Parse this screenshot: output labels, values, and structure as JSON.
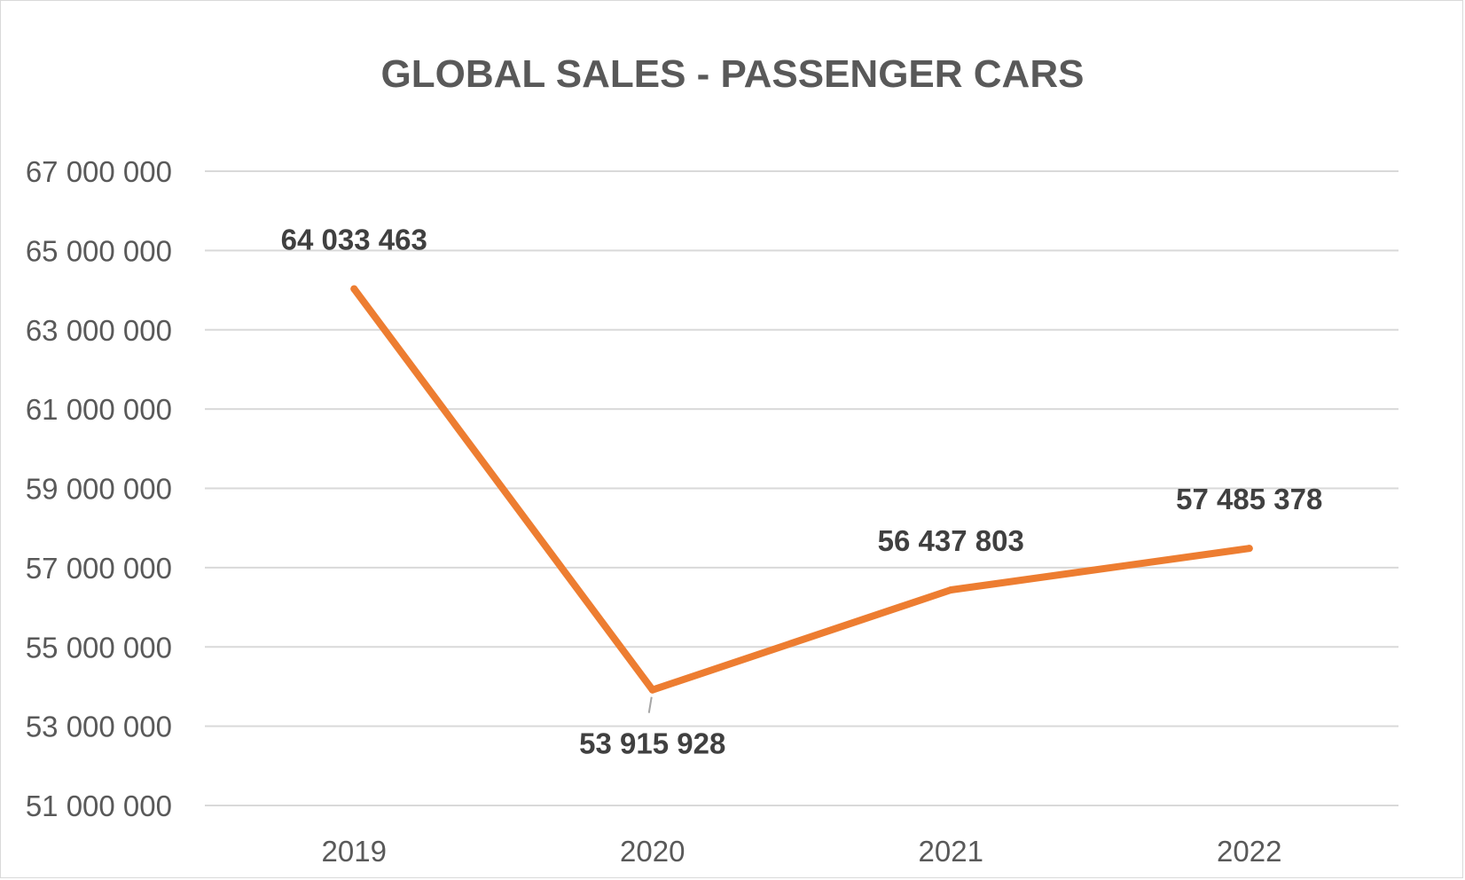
{
  "chart_data": {
    "type": "line",
    "title": "GLOBAL SALES - PASSENGER CARS",
    "xlabel": "",
    "ylabel": "",
    "categories": [
      "2019",
      "2020",
      "2021",
      "2022"
    ],
    "series": [
      {
        "values": [
          64033463,
          53915928,
          56437803,
          57485378
        ],
        "data_labels": [
          "64 033 463",
          "53 915 928",
          "56 437 803",
          "57 485 378"
        ],
        "color": "#ed7d31"
      }
    ],
    "ylim": [
      51000000,
      67000000
    ],
    "y_ticks": [
      67000000,
      65000000,
      63000000,
      61000000,
      59000000,
      57000000,
      55000000,
      53000000,
      51000000
    ],
    "y_tick_labels": [
      "67 000 000",
      "65 000 000",
      "63 000 000",
      "61 000 000",
      "59 000 000",
      "57 000 000",
      "55 000 000",
      "53 000 000",
      "51 000 000"
    ],
    "grid": true,
    "legend": "none",
    "label_positions": [
      "above",
      "below",
      "above",
      "above"
    ]
  }
}
